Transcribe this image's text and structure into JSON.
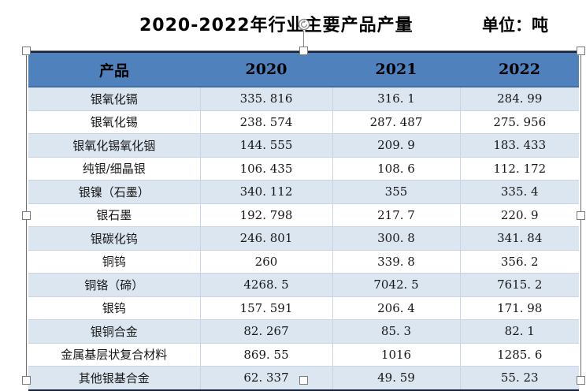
{
  "chart_data": {
    "type": "table",
    "title": "2020-2022年行业主要产品产量",
    "unit_label": "单位：吨",
    "columns": [
      "产品",
      "2020",
      "2021",
      "2022"
    ],
    "products": [
      "银氧化镉",
      "银氧化锡",
      "银氧化锡氧化铟",
      "纯银/细晶银",
      "银镍（石墨）",
      "银石墨",
      "银碳化钨",
      "铜钨",
      "铜铬（碲）",
      "银钨",
      "银铜合金",
      "金属基层状复合材料",
      "其他银基合金"
    ],
    "series": [
      {
        "name": "2020",
        "values": [
          335.816,
          238.574,
          144.555,
          106.435,
          340.112,
          192.798,
          246.801,
          260,
          4268.5,
          157.591,
          82.267,
          869.55,
          62.337
        ]
      },
      {
        "name": "2021",
        "values": [
          316.1,
          287.487,
          209.9,
          108.6,
          355,
          217.7,
          300.8,
          339.8,
          7042.5,
          206.4,
          85.3,
          1016,
          49.59
        ]
      },
      {
        "name": "2022",
        "values": [
          284.99,
          275.956,
          183.433,
          112.172,
          335.4,
          220.9,
          341.84,
          356.2,
          7615.2,
          171.98,
          82.1,
          1285.6,
          55.23
        ]
      }
    ],
    "rows": [
      [
        "银氧化镉",
        "335.816",
        "316.1",
        "284.99"
      ],
      [
        "银氧化锡",
        "238.574",
        "287.487",
        "275.956"
      ],
      [
        "银氧化锡氧化铟",
        "144.555",
        "209.9",
        "183.433"
      ],
      [
        "纯银/细晶银",
        "106.435",
        "108.6",
        "112.172"
      ],
      [
        "银镍（石墨）",
        "340.112",
        "355",
        "335.4"
      ],
      [
        "银石墨",
        "192.798",
        "217.7",
        "220.9"
      ],
      [
        "银碳化钨",
        "246.801",
        "300.8",
        "341.84"
      ],
      [
        "铜钨",
        "260",
        "339.8",
        "356.2"
      ],
      [
        "铜铬（碲）",
        "4268.5",
        "7042.5",
        "7615.2"
      ],
      [
        "银钨",
        "157.591",
        "206.4",
        "171.98"
      ],
      [
        "银铜合金",
        "82.267",
        "85.3",
        "82.1"
      ],
      [
        "金属基层状复合材料",
        "869.55",
        "1016",
        "1285.6"
      ],
      [
        "其他银基合金",
        "62.337",
        "49.59",
        "55.23"
      ]
    ],
    "layout": {
      "banded_rows": true,
      "banded_first_row": true,
      "header_filled": true
    }
  },
  "colors": {
    "header_bg": "#4f81bd",
    "header_edge": "#3f6ea8",
    "band_bg": "#dce6f1",
    "grid": "#c9d5e5",
    "border_dark": "#16233a"
  },
  "selection": {
    "handles": [
      "top-left",
      "top-center",
      "top-right",
      "middle-left",
      "middle-right",
      "bottom-left",
      "bottom-center",
      "bottom-right"
    ],
    "rotate_handle": true
  }
}
